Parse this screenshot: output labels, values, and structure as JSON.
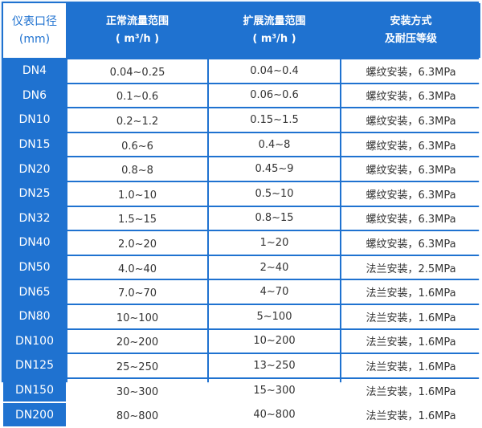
{
  "table": {
    "headers": [
      {
        "line1": "仪表口径",
        "line2": "(mm)"
      },
      {
        "line1": "正常流量范围",
        "line2": "( m³/h )"
      },
      {
        "line1": "扩展流量范围",
        "line2": "( m³/h )"
      },
      {
        "line1": "安装方式",
        "line2": "及耐压等级"
      }
    ],
    "rows": [
      [
        "DN4",
        "0.04~0.25",
        "0.04~0.4",
        "螺纹安装，6.3MPa"
      ],
      [
        "DN6",
        "0.1~0.6",
        "0.06~0.6",
        "螺纹安装，6.3MPa"
      ],
      [
        "DN10",
        "0.2~1.2",
        "0.15~1.5",
        "螺纹安装，6.3MPa"
      ],
      [
        "DN15",
        "0.6~6",
        "0.4~8",
        "螺纹安装，6.3MPa"
      ],
      [
        "DN20",
        "0.8~8",
        "0.45~9",
        "螺纹安装，6.3MPa"
      ],
      [
        "DN25",
        "1.0~10",
        "0.5~10",
        "螺纹安装，6.3MPa"
      ],
      [
        "DN32",
        "1.5~15",
        "0.8~15",
        "螺纹安装，6.3MPa"
      ],
      [
        "DN40",
        "2.0~20",
        "1~20",
        "螺纹安装，6.3MPa"
      ],
      [
        "DN50",
        "4.0~40",
        "2~40",
        "法兰安装，2.5MPa"
      ],
      [
        "DN65",
        "7.0~70",
        "4~70",
        "法兰安装，1.6MPa"
      ],
      [
        "DN80",
        "10~100",
        "5~100",
        "法兰安装，1.6MPa"
      ],
      [
        "DN100",
        "20~200",
        "10~200",
        "法兰安装，1.6MPa"
      ],
      [
        "DN125",
        "25~250",
        "13~250",
        "法兰安装，1.6MPa"
      ],
      [
        "DN150",
        "30~300",
        "15~300",
        "法兰安装，1.6MPa"
      ],
      [
        "DN200",
        "80~800",
        "40~800",
        "法兰安装，1.6MPa"
      ]
    ]
  },
  "colors": {
    "accent": "#1f72d0"
  }
}
